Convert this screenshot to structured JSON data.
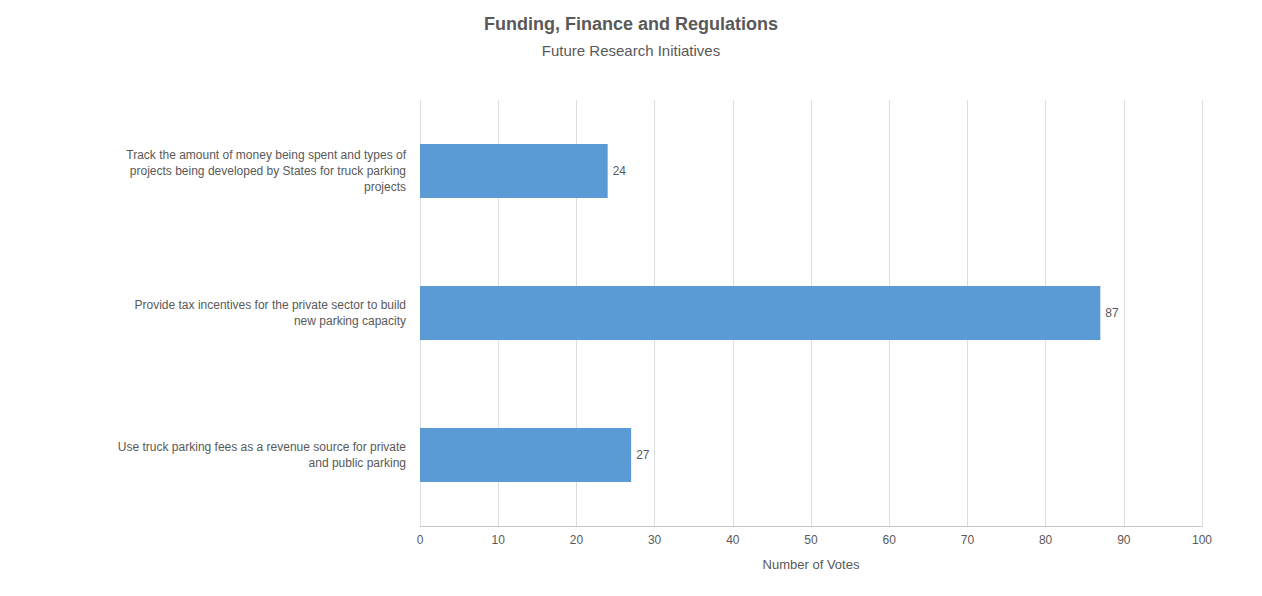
{
  "chart_data": {
    "type": "bar",
    "title": "Funding, Finance and Regulations",
    "subtitle": "Future Research Initiatives",
    "categories": [
      "Use truck parking fees as a revenue source for private\nand public parking",
      "Provide tax incentives for the private sector to build\nnew parking capacity",
      "Track the amount of money being spent and types of\nprojects being developed by States for truck parking\nprojects"
    ],
    "values": [
      27,
      87,
      24
    ],
    "color": "#5b9bd5",
    "orientation": "horizontal",
    "xlabel": "Number of Votes",
    "xlim": [
      0,
      100
    ],
    "xticks": [
      0,
      10,
      20,
      30,
      40,
      50,
      60,
      70,
      80,
      90,
      100
    ],
    "grid": true,
    "data_labels": true
  }
}
